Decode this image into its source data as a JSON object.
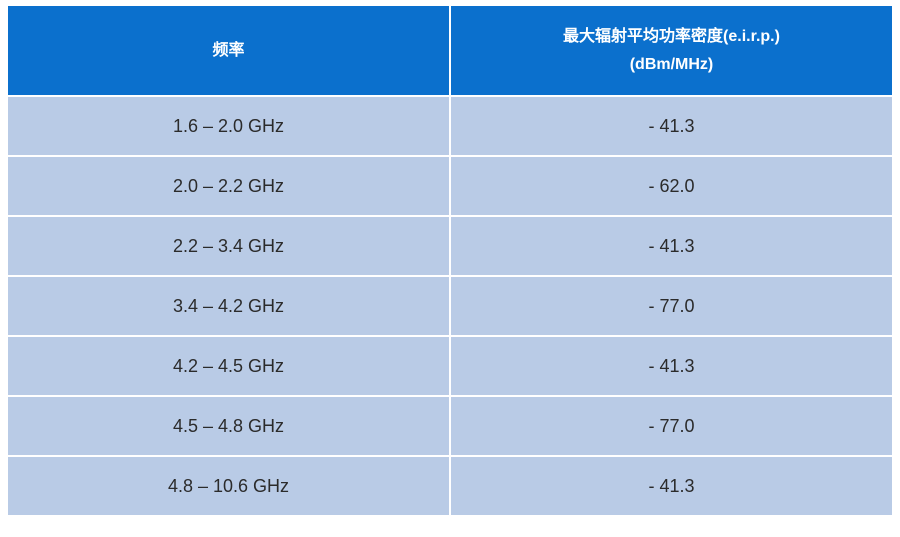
{
  "table": {
    "header": [
      [
        "频率"
      ],
      [
        "最大辐射平均功率密度(e.i.r.p.)",
        "(dBm/MHz)"
      ]
    ],
    "rows": [
      [
        "1.6 – 2.0 GHz",
        "- 41.3"
      ],
      [
        "2.0 – 2.2 GHz",
        "- 62.0"
      ],
      [
        "2.2 – 3.4 GHz",
        "- 41.3"
      ],
      [
        "3.4 – 4.2 GHz",
        "- 77.0"
      ],
      [
        "4.2 – 4.5 GHz",
        "- 41.3"
      ],
      [
        "4.5 – 4.8 GHz",
        "- 77.0"
      ],
      [
        "4.8 – 10.6 GHz",
        "- 41.3"
      ]
    ]
  }
}
